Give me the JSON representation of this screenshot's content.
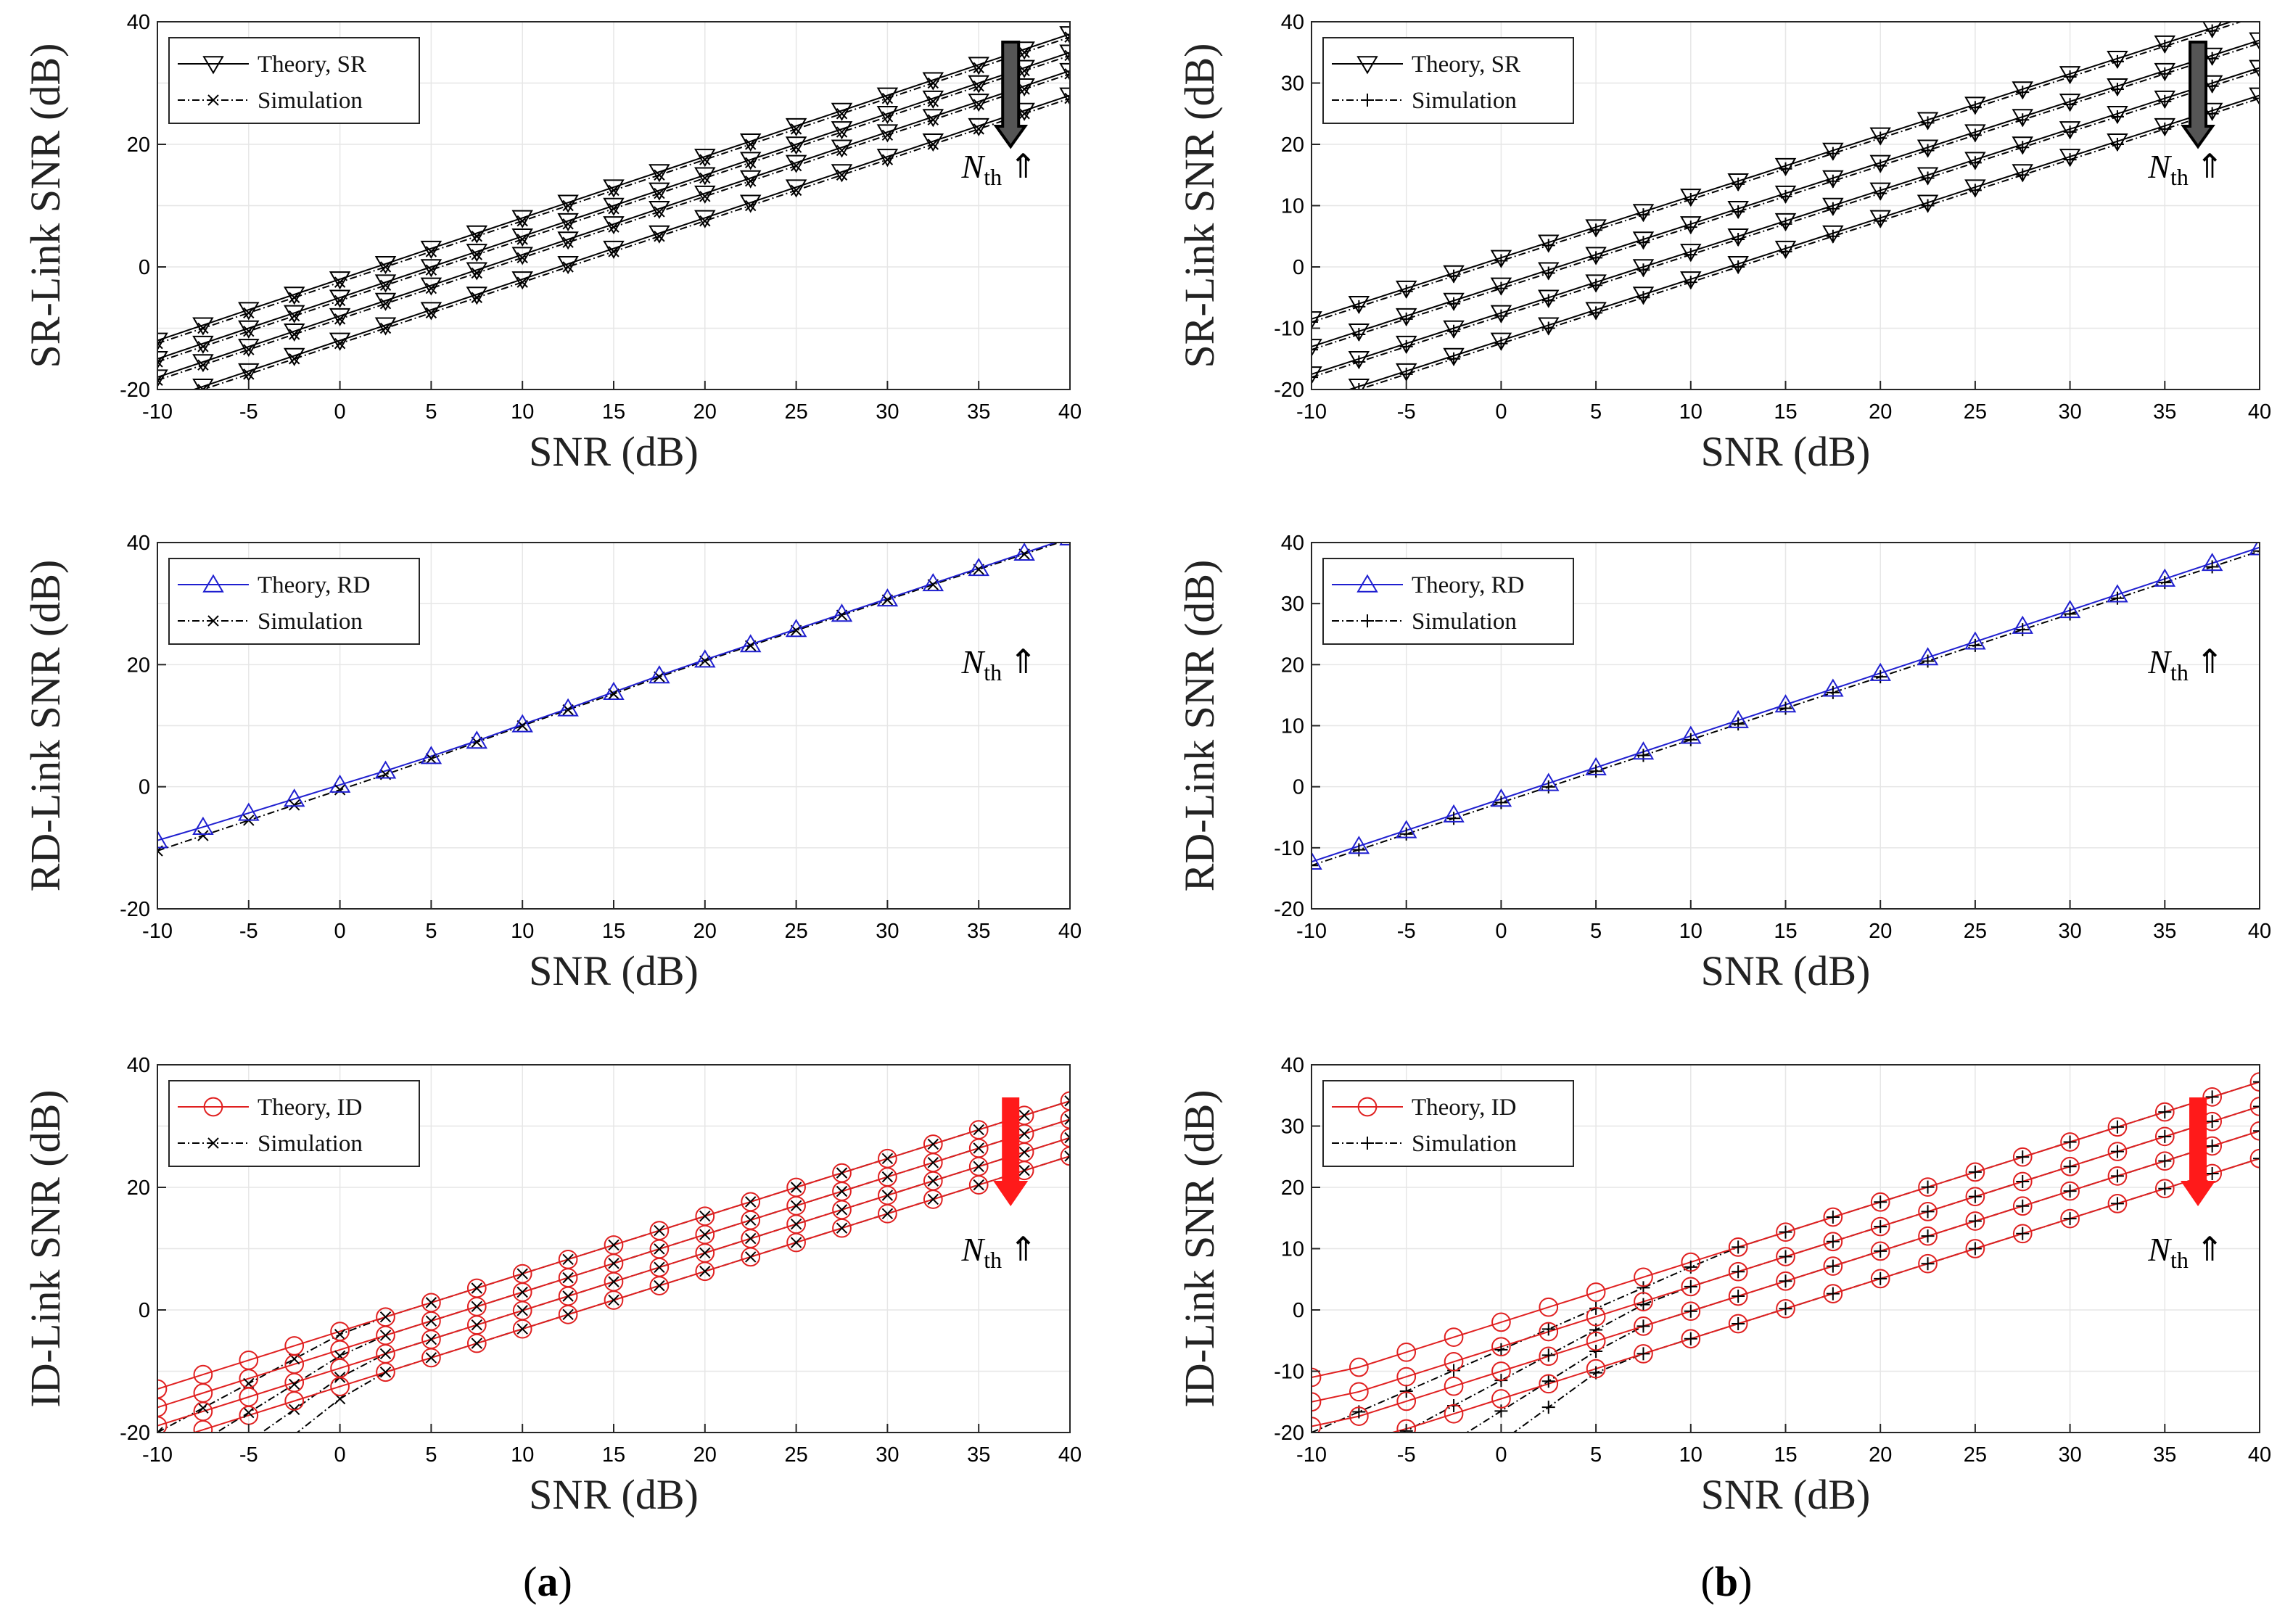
{
  "colors": {
    "sr": "#000000",
    "rd": "#1f1fd0",
    "id": "#e02020",
    "sim": "#000000",
    "grid": "#e6e6e6",
    "arrow_gray": "#555555",
    "arrow_red": "#ff1a1a"
  },
  "captions": [
    "(a)",
    "(b)"
  ],
  "nth_label": "N",
  "nth_sub": "th",
  "nth_arrow": "⇑",
  "chart_data": [
    {
      "type": "line",
      "panel": "a",
      "row": 0,
      "xlabel": "SNR (dB)",
      "ylabel": "SR-Link SNR (dB)",
      "xlim": [
        -10,
        40
      ],
      "ylim": [
        -20,
        40
      ],
      "xticks": [
        -10,
        -5,
        0,
        5,
        10,
        15,
        20,
        25,
        30,
        35,
        40
      ],
      "yticks": [
        -20,
        0,
        20,
        40
      ],
      "legend": [
        "Theory, SR",
        "Simulation"
      ],
      "marker_theory": "tri-down",
      "marker_sim": "x",
      "color": "sr",
      "arrow": "gray",
      "series_offsets": [
        -2,
        -5,
        -8,
        -12
      ]
    },
    {
      "type": "line",
      "panel": "b",
      "row": 0,
      "xlabel": "SNR (dB)",
      "ylabel": "SR-Link SNR (dB)",
      "xlim": [
        -10,
        40
      ],
      "ylim": [
        -20,
        40
      ],
      "xticks": [
        -10,
        -5,
        0,
        5,
        10,
        15,
        20,
        25,
        30,
        35,
        40
      ],
      "yticks": [
        -20,
        -10,
        0,
        10,
        20,
        30,
        40
      ],
      "legend": [
        "Theory, SR",
        "Simulation"
      ],
      "marker_theory": "tri-down",
      "marker_sim": "plus",
      "color": "sr",
      "arrow": "gray",
      "series_offsets": [
        1.5,
        -3,
        -7.5,
        -12
      ]
    },
    {
      "type": "line",
      "panel": "a",
      "row": 1,
      "xlabel": "SNR (dB)",
      "ylabel": "RD-Link SNR (dB)",
      "xlim": [
        -10,
        40
      ],
      "ylim": [
        -20,
        40
      ],
      "xticks": [
        -10,
        -5,
        0,
        5,
        10,
        15,
        20,
        25,
        30,
        35,
        40
      ],
      "yticks": [
        -20,
        0,
        20,
        40
      ],
      "legend": [
        "Theory, RD",
        "Simulation"
      ],
      "marker_theory": "tri-up",
      "marker_sim": "x",
      "color": "rd",
      "arrow": "none",
      "theory_points": [
        [
          -10,
          -8.8
        ],
        [
          -7.5,
          -6.6
        ],
        [
          -5,
          -4.3
        ],
        [
          -2.5,
          -2.0
        ],
        [
          0,
          0.3
        ],
        [
          2.5,
          2.6
        ],
        [
          5,
          5.0
        ],
        [
          7.5,
          7.5
        ],
        [
          10,
          10.2
        ],
        [
          12.5,
          12.8
        ],
        [
          15,
          15.5
        ],
        [
          17.5,
          18.2
        ],
        [
          20,
          20.8
        ],
        [
          22.5,
          23.3
        ],
        [
          25,
          25.8
        ],
        [
          27.5,
          28.3
        ],
        [
          30,
          30.8
        ],
        [
          32.5,
          33.3
        ],
        [
          35,
          35.8
        ],
        [
          37.5,
          38.3
        ],
        [
          40,
          40.8
        ]
      ],
      "sim_points": [
        [
          -10,
          -10.5
        ],
        [
          -7.5,
          -8.0
        ],
        [
          -5,
          -5.5
        ],
        [
          -2.5,
          -3.0
        ],
        [
          0,
          -0.5
        ],
        [
          2.5,
          2.0
        ],
        [
          5,
          4.6
        ],
        [
          7.5,
          7.3
        ],
        [
          10,
          10.0
        ],
        [
          12.5,
          12.6
        ],
        [
          15,
          15.2
        ],
        [
          17.5,
          18.0
        ],
        [
          20,
          20.6
        ],
        [
          22.5,
          23.1
        ],
        [
          25,
          25.6
        ],
        [
          27.5,
          28.1
        ],
        [
          30,
          30.6
        ],
        [
          32.5,
          33.1
        ],
        [
          35,
          35.6
        ],
        [
          37.5,
          38.1
        ],
        [
          40,
          40.6
        ]
      ]
    },
    {
      "type": "line",
      "panel": "b",
      "row": 1,
      "xlabel": "SNR (dB)",
      "ylabel": "RD-Link SNR (dB)",
      "xlim": [
        -10,
        40
      ],
      "ylim": [
        -20,
        40
      ],
      "xticks": [
        -10,
        -5,
        0,
        5,
        10,
        15,
        20,
        25,
        30,
        35,
        40
      ],
      "yticks": [
        -20,
        -10,
        0,
        10,
        20,
        30,
        40
      ],
      "legend": [
        "Theory, RD",
        "Simulation"
      ],
      "marker_theory": "tri-up",
      "marker_sim": "plus",
      "color": "rd",
      "arrow": "none",
      "series_offsets": [
        -2.0,
        -2.6
      ]
    },
    {
      "type": "line",
      "panel": "a",
      "row": 2,
      "xlabel": "SNR (dB)",
      "ylabel": "ID-Link SNR (dB)",
      "xlim": [
        -10,
        40
      ],
      "ylim": [
        -20,
        40
      ],
      "xticks": [
        -10,
        -5,
        0,
        5,
        10,
        15,
        20,
        25,
        30,
        35,
        40
      ],
      "yticks": [
        -20,
        0,
        20,
        40
      ],
      "legend": [
        "Theory, ID",
        "Simulation"
      ],
      "marker_theory": "circle",
      "marker_sim": "x",
      "color": "id",
      "arrow": "red",
      "theory_offsets": [
        -5,
        -8,
        -11,
        -14
      ],
      "sim_offsets": [
        -5,
        -8,
        -11,
        -14
      ],
      "low_snr_theory_floor": [
        -15.5,
        -18.5,
        -21,
        -23.5
      ]
    },
    {
      "type": "line",
      "panel": "b",
      "row": 2,
      "xlabel": "SNR (dB)",
      "ylabel": "ID-Link SNR (dB)",
      "xlim": [
        -10,
        40
      ],
      "ylim": [
        -20,
        40
      ],
      "xticks": [
        -10,
        -5,
        0,
        5,
        10,
        15,
        20,
        25,
        30,
        35,
        40
      ],
      "yticks": [
        -20,
        -10,
        0,
        10,
        20,
        30,
        40
      ],
      "legend": [
        "Theory, ID",
        "Simulation"
      ],
      "marker_theory": "circle",
      "marker_sim": "plus",
      "color": "id",
      "arrow": "red",
      "theory_offsets": [
        -2,
        -6,
        -10,
        -14.5
      ],
      "sim_offsets": [
        -2,
        -6,
        -10,
        -14.5
      ]
    }
  ]
}
